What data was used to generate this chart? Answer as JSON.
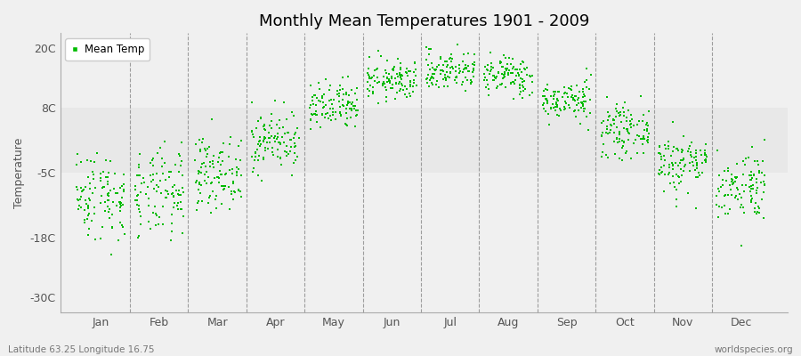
{
  "title": "Monthly Mean Temperatures 1901 - 2009",
  "ylabel": "Temperature",
  "xlabel_labels": [
    "Jan",
    "Feb",
    "Mar",
    "Apr",
    "May",
    "Jun",
    "Jul",
    "Aug",
    "Sep",
    "Oct",
    "Nov",
    "Dec"
  ],
  "subtitle_left": "Latitude 63.25 Longitude 16.75",
  "subtitle_right": "worldspecies.org",
  "legend_label": "Mean Temp",
  "dot_color": "#00bb00",
  "background_color": "#f0f0f0",
  "plot_bg_color": "#f0f0f0",
  "band_color": "#e8e8e8",
  "yticks": [
    -30,
    -18,
    -5,
    8,
    20
  ],
  "ytick_labels": [
    "-30C",
    "-18C",
    "-5C",
    "8C",
    "20C"
  ],
  "ylim": [
    -33,
    23
  ],
  "xlim": [
    0.3,
    12.8
  ],
  "n_years": 109,
  "monthly_means": [
    -9.5,
    -9.5,
    -5.0,
    1.5,
    8.0,
    13.5,
    15.5,
    14.5,
    9.5,
    3.5,
    -3.0,
    -7.5
  ],
  "monthly_stds": [
    4.5,
    4.5,
    3.5,
    3.0,
    2.5,
    2.0,
    2.0,
    2.0,
    2.0,
    2.5,
    3.0,
    3.5
  ]
}
